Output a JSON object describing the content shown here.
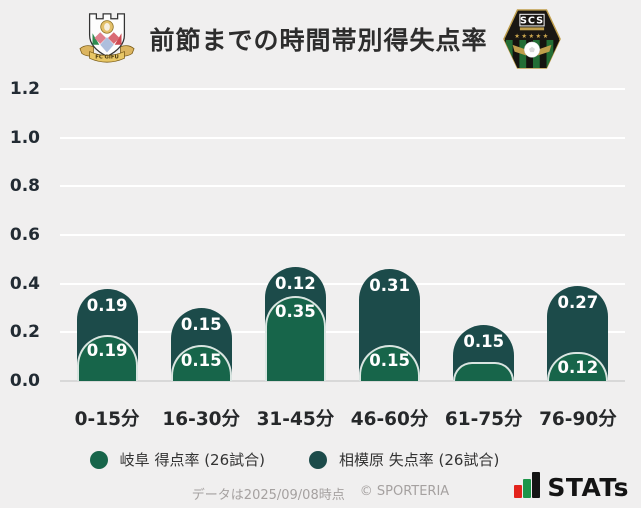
{
  "title": "前節までの時間帯別得失点率",
  "logos": {
    "left": {
      "name": "FC岐阜クレスト",
      "banner_text": "FC GIFU"
    },
    "right": {
      "name": "SC相模原バッジ",
      "badge_text": "SCS",
      "stars": "★★★★★"
    }
  },
  "chart_data": {
    "type": "bar",
    "stacked": true,
    "categories": [
      "0-15分",
      "16-30分",
      "31-45分",
      "46-60分",
      "61-75分",
      "76-90分"
    ],
    "series": [
      {
        "name": "岐阜 得点率 (26試合)",
        "color": "#17654a",
        "values": [
          0.19,
          0.15,
          0.35,
          0.15,
          0.08,
          0.12
        ],
        "value_labels": [
          "0.19",
          "0.15",
          "0.35",
          "0.15",
          "",
          "0.12"
        ]
      },
      {
        "name": "相模原 失点率 (26試合)",
        "color": "#1c4b4a",
        "values": [
          0.19,
          0.15,
          0.12,
          0.31,
          0.15,
          0.27
        ],
        "value_labels": [
          "0.19",
          "0.15",
          "0.12",
          "0.31",
          "0.15",
          "0.27"
        ]
      }
    ],
    "ylim": [
      0,
      1.2
    ],
    "yticks": [
      "1.2",
      "1.0",
      "0.8",
      "0.6",
      "0.4",
      "0.2",
      "0.0"
    ],
    "grid": true,
    "legend_position": "bottom"
  },
  "footer": {
    "note": "データは2025/09/08時点",
    "copyright": "© SPORTERIA"
  },
  "brand": {
    "label": "STATs",
    "bar_colors": [
      "#e3231c",
      "#1d9549",
      "#141414"
    ]
  }
}
